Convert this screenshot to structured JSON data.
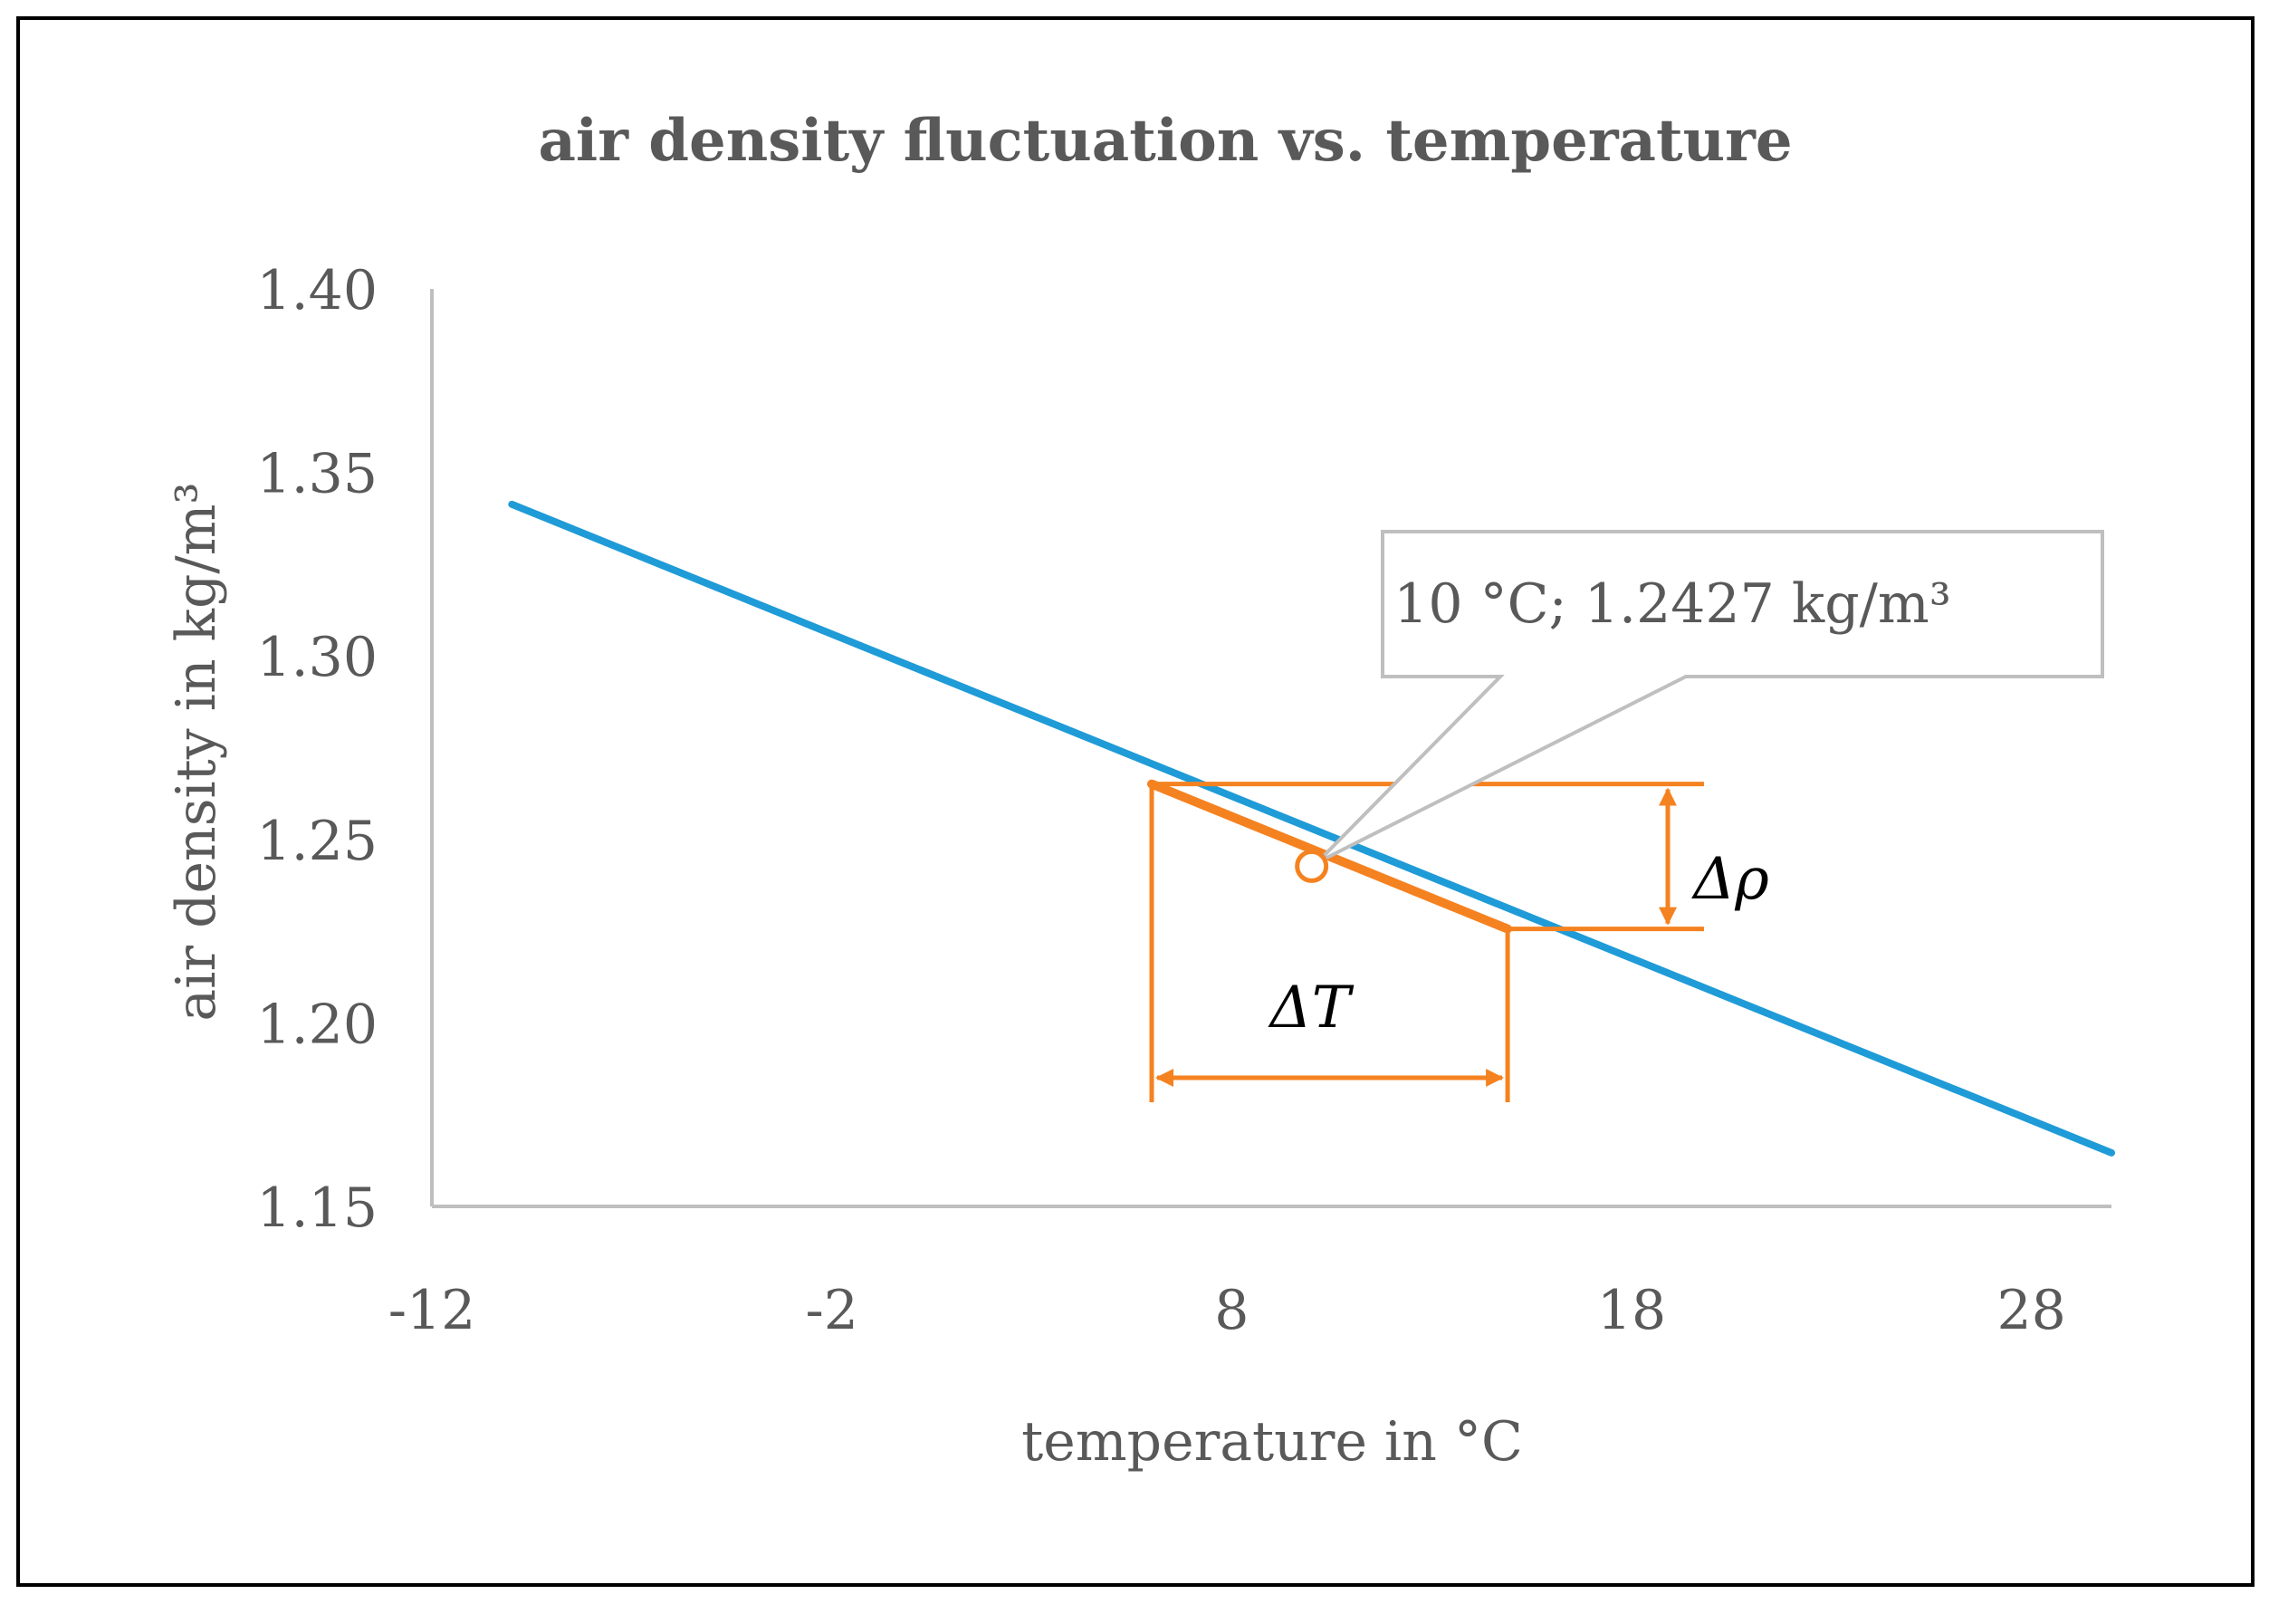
{
  "chart_data": {
    "type": "line",
    "title": "air density fluctuation vs. temperature",
    "xlabel": "temperature in °C",
    "ylabel": "air density in kg/m³",
    "xlim": [
      -12,
      30
    ],
    "ylim": [
      1.15,
      1.4
    ],
    "x_ticks": [
      "-12",
      "-2",
      "8",
      "18",
      "28"
    ],
    "x_tick_values": [
      -12,
      -2,
      8,
      18,
      28
    ],
    "y_ticks": [
      "1.40",
      "1.35",
      "1.30",
      "1.25",
      "1.20",
      "1.15"
    ],
    "y_tick_values": [
      1.4,
      1.35,
      1.3,
      1.25,
      1.2,
      1.15
    ],
    "grid": false,
    "series": [
      {
        "color": "#1f9bd7",
        "x": [
          -10,
          30
        ],
        "y": [
          1.3413,
          1.1646
        ]
      }
    ],
    "highlight_segment": {
      "color": "#f58220",
      "x": [
        6,
        14.9
      ],
      "y": [
        1.2651,
        1.2256
      ]
    },
    "annotation": {
      "label": "10 °C; 1.2427 kg/m³",
      "x": 10,
      "y": 1.2427,
      "marker_color": "#f58220"
    },
    "delta_labels": {
      "temperature": "ΔT",
      "density": "Δρ"
    }
  }
}
